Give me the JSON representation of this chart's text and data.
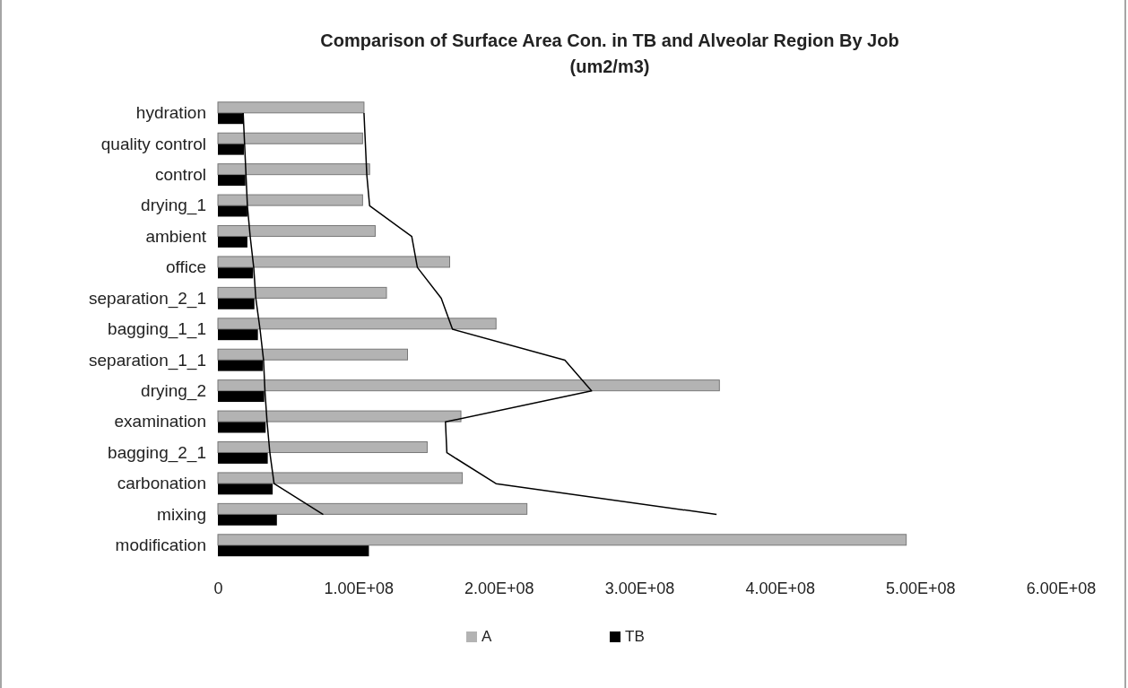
{
  "chart_data": {
    "type": "bar",
    "orientation": "horizontal",
    "title": "Comparison of Surface Area Con. in TB and Alveolar Region By Job\n(um2/m3)",
    "categories": [
      "hydration",
      "quality control",
      "control",
      "drying_1",
      "ambient",
      "office",
      "separation_2_1",
      "bagging_1_1",
      "separation_1_1",
      "drying_2",
      "examination",
      "bagging_2_1",
      "carbonation",
      "mixing",
      "modification"
    ],
    "series": [
      {
        "name": "A",
        "color": "#b3b3b3",
        "values": [
          104000000,
          103000000,
          108000000,
          103000000,
          112000000,
          165000000,
          120000000,
          198000000,
          135000000,
          357000000,
          173000000,
          149000000,
          174000000,
          220000000,
          490000000
        ]
      },
      {
        "name": "TB",
        "color": "#000000",
        "values": [
          18000000,
          18500000,
          19600000,
          21000000,
          21000000,
          25000000,
          26000000,
          28500000,
          32000000,
          33000000,
          34000000,
          35500000,
          39000000,
          42000000,
          107500000
        ]
      },
      {
        "type": "line",
        "color": "#000000",
        "values": [
          104000000,
          105000000,
          106000000,
          108000000,
          138000000,
          142000000,
          159000000,
          167000000,
          247000000,
          266000000,
          162000000,
          163000000,
          198000000,
          355000000,
          null
        ]
      },
      {
        "type": "line",
        "color": "#000000",
        "values": [
          18000000,
          19000000,
          20000000,
          21000000,
          23000000,
          25500000,
          27000000,
          30000000,
          32500000,
          33500000,
          35000000,
          37000000,
          40000000,
          75000000,
          null
        ]
      }
    ],
    "xlim": [
      0,
      600000000
    ],
    "xticks": [
      0,
      {
        "value": 100000000,
        "label": "1.00E+08"
      },
      {
        "value": 200000000,
        "label": "2.00E+08"
      },
      {
        "value": 300000000,
        "label": "3.00E+08"
      },
      {
        "value": 400000000,
        "label": "4.00E+08"
      },
      {
        "value": 500000000,
        "label": "5.00E+08"
      },
      {
        "value": 600000000,
        "label": "6.00E+08"
      }
    ],
    "grid": false,
    "legend": "bottom"
  }
}
